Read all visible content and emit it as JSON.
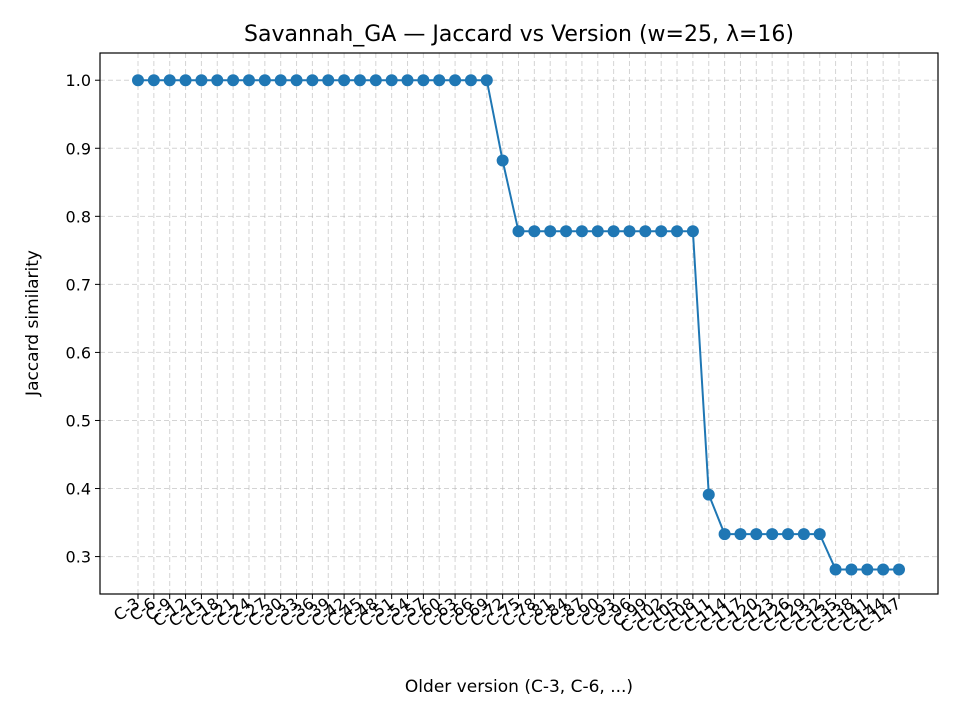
{
  "chart_data": {
    "type": "line",
    "title": "Savannah_GA — Jaccard vs Version (w=25, λ=16)",
    "xlabel": "Older version (C-3, C-6, ...)",
    "ylabel": "Jaccard similarity",
    "ylim": [
      0.245,
      1.04
    ],
    "yticks": [
      0.3,
      0.4,
      0.5,
      0.6,
      0.7,
      0.8,
      0.9,
      1.0
    ],
    "grid": true,
    "color": "#1f77b4",
    "categories": [
      "C-3",
      "C-6",
      "C-9",
      "C-12",
      "C-15",
      "C-18",
      "C-21",
      "C-24",
      "C-27",
      "C-30",
      "C-33",
      "C-36",
      "C-39",
      "C-42",
      "C-45",
      "C-48",
      "C-51",
      "C-54",
      "C-57",
      "C-60",
      "C-63",
      "C-66",
      "C-69",
      "C-72",
      "C-75",
      "C-78",
      "C-81",
      "C-84",
      "C-87",
      "C-90",
      "C-93",
      "C-96",
      "C-99",
      "C-102",
      "C-105",
      "C-108",
      "C-111",
      "C-114",
      "C-117",
      "C-120",
      "C-123",
      "C-126",
      "C-129",
      "C-132",
      "C-135",
      "C-138",
      "C-141",
      "C-144",
      "C-147"
    ],
    "series": [
      {
        "values": [
          1.0,
          1.0,
          1.0,
          1.0,
          1.0,
          1.0,
          1.0,
          1.0,
          1.0,
          1.0,
          1.0,
          1.0,
          1.0,
          1.0,
          1.0,
          1.0,
          1.0,
          1.0,
          1.0,
          1.0,
          1.0,
          1.0,
          1.0,
          0.882,
          0.778,
          0.778,
          0.778,
          0.778,
          0.778,
          0.778,
          0.778,
          0.778,
          0.778,
          0.778,
          0.778,
          0.778,
          0.391,
          0.333,
          0.333,
          0.333,
          0.333,
          0.333,
          0.333,
          0.333,
          0.281,
          0.281,
          0.281,
          0.281,
          0.281
        ]
      }
    ]
  }
}
